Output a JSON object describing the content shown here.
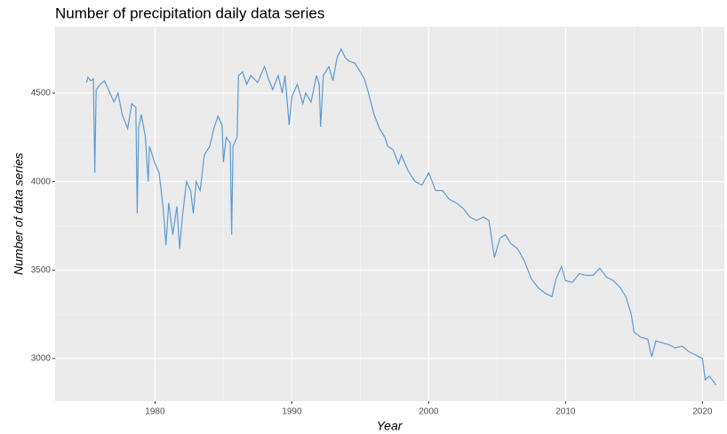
{
  "chart_data": {
    "type": "line",
    "title": "Number of precipitation daily data series",
    "xlabel": "Year",
    "ylabel": "Number of data series",
    "xlim": [
      1972.7,
      2021.6
    ],
    "ylim": [
      2759,
      4876
    ],
    "xticks": [
      1980,
      1990,
      2000,
      2010,
      2020
    ],
    "yticks": [
      3000,
      3500,
      4000,
      4500
    ],
    "grid": true,
    "color": "#5b9bd5",
    "x": [
      1975.0,
      1975.1,
      1975.3,
      1975.5,
      1975.6,
      1975.7,
      1976.0,
      1976.3,
      1976.6,
      1977.0,
      1977.3,
      1977.6,
      1978.0,
      1978.3,
      1978.6,
      1978.7,
      1978.8,
      1979.0,
      1979.3,
      1979.5,
      1979.6,
      1980.0,
      1980.3,
      1980.6,
      1980.8,
      1981.0,
      1981.3,
      1981.6,
      1981.8,
      1982.0,
      1982.3,
      1982.6,
      1982.8,
      1983.0,
      1983.3,
      1983.6,
      1984.0,
      1984.3,
      1984.6,
      1984.9,
      1985.0,
      1985.2,
      1985.5,
      1985.6,
      1985.7,
      1986.0,
      1986.1,
      1986.4,
      1986.7,
      1987.0,
      1987.5,
      1988.0,
      1988.3,
      1988.6,
      1989.0,
      1989.3,
      1989.5,
      1989.8,
      1990.0,
      1990.4,
      1990.8,
      1991.0,
      1991.4,
      1991.8,
      1992.0,
      1992.1,
      1992.3,
      1992.7,
      1993.0,
      1993.3,
      1993.6,
      1993.9,
      1994.2,
      1994.6,
      1995.0,
      1995.3,
      1995.6,
      1996.0,
      1996.4,
      1996.8,
      1997.0,
      1997.4,
      1997.8,
      1998.0,
      1998.5,
      1999.0,
      1999.5,
      2000.0,
      2000.5,
      2001.0,
      2001.5,
      2002.0,
      2002.5,
      2003.0,
      2003.5,
      2004.0,
      2004.4,
      2004.8,
      2005.2,
      2005.6,
      2006.0,
      2006.5,
      2007.0,
      2007.5,
      2008.0,
      2008.5,
      2009.0,
      2009.3,
      2009.7,
      2010.0,
      2010.5,
      2011.0,
      2011.5,
      2012.0,
      2012.5,
      2013.0,
      2013.5,
      2014.0,
      2014.4,
      2014.8,
      2015.0,
      2015.5,
      2016.0,
      2016.3,
      2016.6,
      2017.0,
      2017.5,
      2018.0,
      2018.5,
      2019.0,
      2019.5,
      2020.0,
      2020.2,
      2020.5,
      2020.8,
      2021.0
    ],
    "values": [
      4560,
      4590,
      4570,
      4580,
      4050,
      4520,
      4550,
      4570,
      4520,
      4450,
      4500,
      4380,
      4300,
      4440,
      4420,
      3820,
      4300,
      4380,
      4250,
      4000,
      4200,
      4100,
      4050,
      3850,
      3640,
      3880,
      3700,
      3860,
      3620,
      3800,
      4000,
      3950,
      3820,
      4000,
      3950,
      4150,
      4200,
      4300,
      4370,
      4320,
      4110,
      4250,
      4220,
      3700,
      4200,
      4250,
      4600,
      4620,
      4550,
      4600,
      4560,
      4650,
      4580,
      4520,
      4600,
      4500,
      4600,
      4320,
      4480,
      4550,
      4440,
      4500,
      4450,
      4600,
      4550,
      4310,
      4600,
      4650,
      4570,
      4700,
      4750,
      4700,
      4680,
      4670,
      4620,
      4580,
      4500,
      4380,
      4300,
      4250,
      4200,
      4180,
      4100,
      4150,
      4060,
      4000,
      3980,
      4050,
      3950,
      3950,
      3900,
      3880,
      3850,
      3800,
      3780,
      3800,
      3780,
      3570,
      3680,
      3700,
      3650,
      3620,
      3550,
      3450,
      3400,
      3370,
      3350,
      3450,
      3520,
      3440,
      3430,
      3480,
      3470,
      3470,
      3510,
      3460,
      3440,
      3400,
      3350,
      3250,
      3150,
      3120,
      3110,
      3010,
      3100,
      3090,
      3080,
      3060,
      3070,
      3040,
      3020,
      3000,
      2880,
      2900,
      2870,
      2850
    ]
  }
}
